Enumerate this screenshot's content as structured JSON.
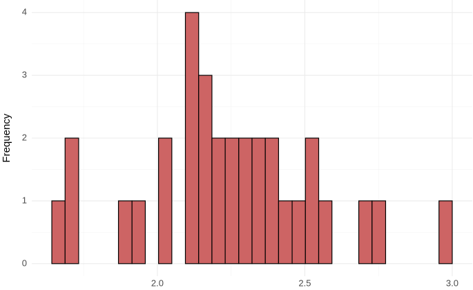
{
  "chart_data": {
    "type": "histogram",
    "y_label": "Frequency",
    "bins": [
      1.642,
      1.687,
      1.733,
      1.778,
      1.823,
      1.868,
      1.914,
      1.959,
      2.004,
      2.049,
      2.095,
      2.14,
      2.185,
      2.23,
      2.276,
      2.321,
      2.366,
      2.411,
      2.457,
      2.502,
      2.547,
      2.592,
      2.638,
      2.683,
      2.728,
      2.774,
      2.819,
      2.864,
      2.909,
      2.955,
      3.0
    ],
    "values": [
      1,
      2,
      0,
      0,
      0,
      1,
      1,
      0,
      2,
      0,
      4,
      3,
      2,
      2,
      2,
      2,
      2,
      1,
      1,
      2,
      1,
      0,
      0,
      1,
      1,
      0,
      0,
      0,
      0,
      1
    ],
    "color": "#cd6464",
    "edge_color": "#000000",
    "xlim": [
      1.574,
      3.068
    ],
    "xticks": [
      {
        "value": 2.0,
        "label": "2.0"
      },
      {
        "value": 2.5,
        "label": "2.5"
      },
      {
        "value": 3.0,
        "label": "3.0"
      }
    ],
    "ylim": [
      -0.2,
      4.2
    ],
    "yticks": [
      0,
      1,
      2,
      3,
      4
    ],
    "grid": true
  }
}
